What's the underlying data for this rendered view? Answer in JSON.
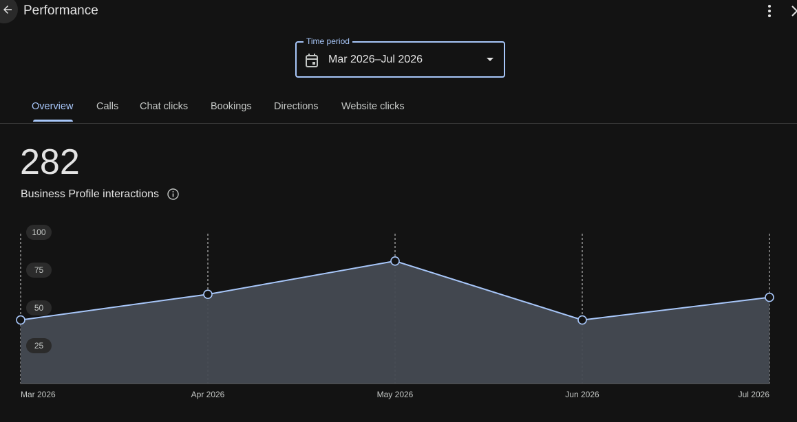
{
  "header": {
    "title": "Performance",
    "back_icon": "arrow-left-icon",
    "more_icon": "more-vert-icon",
    "close_icon": "close-icon"
  },
  "time_period": {
    "label": "Time period",
    "value": "Mar 2026–Jul 2026",
    "icon": "calendar-icon"
  },
  "tabs": [
    {
      "label": "Overview",
      "active": true
    },
    {
      "label": "Calls"
    },
    {
      "label": "Chat clicks"
    },
    {
      "label": "Bookings"
    },
    {
      "label": "Directions"
    },
    {
      "label": "Website clicks"
    }
  ],
  "metric": {
    "value": "282",
    "label": "Business Profile interactions"
  },
  "colors": {
    "accent": "#a8c7fa",
    "area": "#454a52",
    "background": "#131313"
  },
  "chart_data": {
    "type": "area",
    "categories": [
      "Mar 2026",
      "Apr 2026",
      "May 2026",
      "Jun 2026",
      "Jul 2026"
    ],
    "values": [
      42,
      59,
      81,
      42,
      57
    ],
    "yticks": [
      "25",
      "50",
      "75",
      "100"
    ],
    "ylim": [
      0,
      100
    ],
    "grid": "vertical-dashed"
  }
}
